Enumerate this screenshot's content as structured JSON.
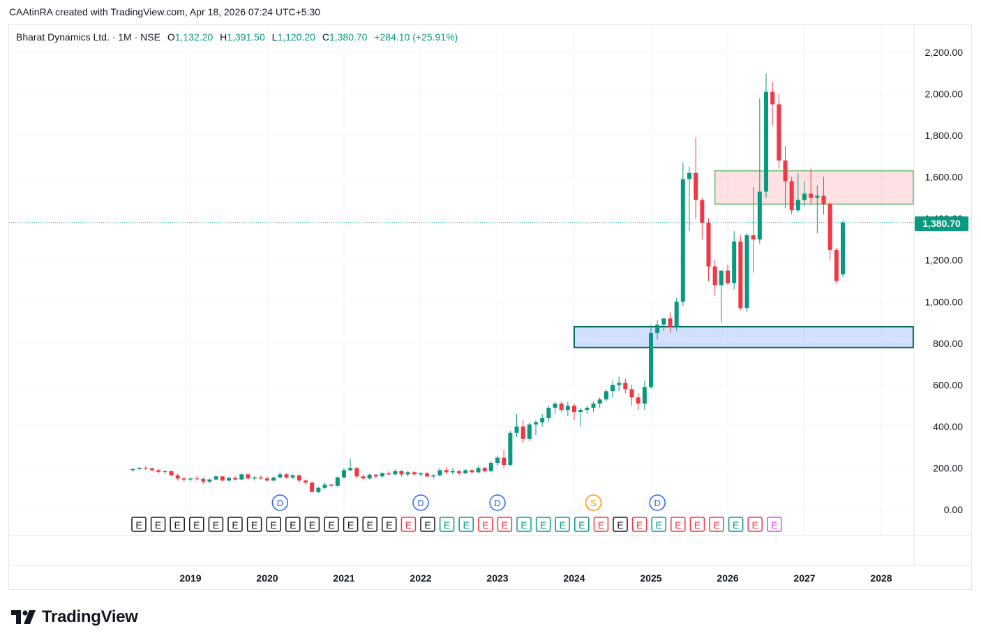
{
  "caption": "CAAtinRA created with TradingView.com, Apr 18, 2026 07:24 UTC+5:30",
  "legend": {
    "symbol": "Bharat Dynamics Ltd. · 1M · NSE",
    "o_label": "O",
    "o": "1,132.20",
    "h_label": "H",
    "h": "1,391.50",
    "l_label": "L",
    "l": "1,120.20",
    "c_label": "C",
    "c": "1,380.70",
    "change": "+284.10 (+25.91%)"
  },
  "last_price_label": "1,380.70",
  "brand": "TradingView",
  "colors": {
    "up": "#089981",
    "down": "#f23645",
    "dividend": "#2962ff",
    "split": "#ff9800",
    "earnings": "#131722"
  },
  "chart_data": {
    "type": "candlestick",
    "ylim": [
      -30,
      2250
    ],
    "y_ticks": [
      0,
      200,
      400,
      600,
      800,
      1000,
      1200,
      1400,
      1600,
      1800,
      2000,
      2200
    ],
    "y_tick_labels": [
      "0.00",
      "200.00",
      "400.00",
      "600.00",
      "800.00",
      "1,000.00",
      "1,200.00",
      "1,400.00",
      "1,600.00",
      "1,800.00",
      "2,000.00",
      "2,200.00"
    ],
    "x_tick_labels": [
      "2019",
      "2020",
      "2021",
      "2022",
      "2023",
      "2024",
      "2025",
      "2026",
      "2027",
      "2028"
    ],
    "x_ticks": [
      2019,
      2020,
      2021,
      2022,
      2023,
      2024,
      2025,
      2026,
      2027,
      2028
    ],
    "last_price": 1380.7,
    "start": "2018-03",
    "candles": [
      [
        190,
        200,
        180,
        195
      ],
      [
        195,
        205,
        188,
        200
      ],
      [
        200,
        210,
        190,
        198
      ],
      [
        198,
        202,
        185,
        190
      ],
      [
        190,
        195,
        175,
        182
      ],
      [
        182,
        190,
        170,
        185
      ],
      [
        185,
        188,
        160,
        165
      ],
      [
        165,
        172,
        140,
        150
      ],
      [
        150,
        158,
        135,
        145
      ],
      [
        145,
        155,
        138,
        150
      ],
      [
        150,
        160,
        140,
        148
      ],
      [
        148,
        155,
        125,
        135
      ],
      [
        135,
        150,
        128,
        145
      ],
      [
        145,
        165,
        140,
        160
      ],
      [
        160,
        162,
        135,
        140
      ],
      [
        140,
        158,
        135,
        152
      ],
      [
        152,
        160,
        140,
        145
      ],
      [
        145,
        175,
        142,
        170
      ],
      [
        170,
        172,
        145,
        150
      ],
      [
        150,
        160,
        140,
        155
      ],
      [
        155,
        165,
        145,
        150
      ],
      [
        150,
        160,
        135,
        140
      ],
      [
        140,
        160,
        135,
        155
      ],
      [
        155,
        180,
        150,
        170
      ],
      [
        170,
        175,
        150,
        155
      ],
      [
        155,
        170,
        148,
        165
      ],
      [
        165,
        168,
        130,
        140
      ],
      [
        140,
        145,
        120,
        130
      ],
      [
        130,
        135,
        90,
        85
      ],
      [
        85,
        110,
        80,
        105
      ],
      [
        105,
        130,
        100,
        120
      ],
      [
        120,
        125,
        110,
        115
      ],
      [
        115,
        160,
        110,
        155
      ],
      [
        155,
        200,
        150,
        190
      ],
      [
        190,
        245,
        185,
        200
      ],
      [
        200,
        205,
        150,
        160
      ],
      [
        160,
        170,
        140,
        150
      ],
      [
        150,
        175,
        145,
        168
      ],
      [
        168,
        172,
        150,
        160
      ],
      [
        160,
        180,
        155,
        175
      ],
      [
        175,
        185,
        165,
        170
      ],
      [
        170,
        195,
        165,
        185
      ],
      [
        185,
        190,
        160,
        170
      ],
      [
        170,
        185,
        160,
        180
      ],
      [
        180,
        185,
        165,
        170
      ],
      [
        170,
        180,
        160,
        175
      ],
      [
        175,
        180,
        155,
        160
      ],
      [
        160,
        170,
        150,
        165
      ],
      [
        165,
        200,
        160,
        190
      ],
      [
        190,
        205,
        170,
        180
      ],
      [
        180,
        200,
        170,
        185
      ],
      [
        185,
        190,
        165,
        175
      ],
      [
        175,
        195,
        170,
        190
      ],
      [
        190,
        195,
        170,
        180
      ],
      [
        180,
        210,
        175,
        200
      ],
      [
        200,
        205,
        180,
        185
      ],
      [
        185,
        235,
        180,
        225
      ],
      [
        225,
        260,
        210,
        250
      ],
      [
        250,
        290,
        200,
        215
      ],
      [
        215,
        380,
        210,
        370
      ],
      [
        370,
        460,
        350,
        400
      ],
      [
        400,
        430,
        320,
        340
      ],
      [
        340,
        420,
        330,
        410
      ],
      [
        410,
        430,
        360,
        420
      ],
      [
        420,
        460,
        400,
        440
      ],
      [
        440,
        500,
        420,
        490
      ],
      [
        490,
        520,
        460,
        510
      ],
      [
        510,
        520,
        470,
        480
      ],
      [
        480,
        520,
        450,
        500
      ],
      [
        500,
        510,
        430,
        470
      ],
      [
        470,
        490,
        400,
        480
      ],
      [
        480,
        500,
        460,
        490
      ],
      [
        490,
        520,
        470,
        510
      ],
      [
        510,
        540,
        490,
        530
      ],
      [
        530,
        580,
        520,
        570
      ],
      [
        570,
        620,
        540,
        600
      ],
      [
        600,
        640,
        570,
        610
      ],
      [
        610,
        630,
        560,
        580
      ],
      [
        580,
        600,
        500,
        540
      ],
      [
        540,
        560,
        480,
        510
      ],
      [
        510,
        620,
        480,
        590
      ],
      [
        590,
        890,
        580,
        850
      ],
      [
        850,
        910,
        820,
        890
      ],
      [
        890,
        920,
        860,
        920
      ],
      [
        920,
        950,
        850,
        880
      ],
      [
        880,
        1020,
        860,
        1000
      ],
      [
        1000,
        1670,
        980,
        1590
      ],
      [
        1590,
        1650,
        1340,
        1620
      ],
      [
        1620,
        1790,
        1400,
        1490
      ],
      [
        1490,
        1500,
        1300,
        1380
      ],
      [
        1380,
        1400,
        1100,
        1170
      ],
      [
        1170,
        1200,
        1030,
        1080
      ],
      [
        1080,
        1130,
        900,
        1150
      ],
      [
        1150,
        1180,
        1080,
        1090
      ],
      [
        1090,
        1340,
        1060,
        1290
      ],
      [
        1290,
        1320,
        960,
        970
      ],
      [
        970,
        1330,
        950,
        1320
      ],
      [
        1320,
        1550,
        1140,
        1300
      ],
      [
        1300,
        1980,
        1280,
        1530
      ],
      [
        1530,
        2100,
        1500,
        2010
      ],
      [
        2010,
        2060,
        1850,
        1950
      ],
      [
        1950,
        2000,
        1640,
        1680
      ],
      [
        1680,
        1750,
        1450,
        1580
      ],
      [
        1580,
        1600,
        1420,
        1440
      ],
      [
        1440,
        1620,
        1430,
        1490
      ],
      [
        1490,
        1580,
        1460,
        1520
      ],
      [
        1520,
        1640,
        1470,
        1500
      ],
      [
        1500,
        1560,
        1330,
        1510
      ],
      [
        1510,
        1600,
        1420,
        1470
      ],
      [
        1470,
        1480,
        1200,
        1250
      ],
      [
        1250,
        1260,
        1090,
        1100
      ],
      [
        1132.2,
        1391.5,
        1120.2,
        1380.7
      ]
    ],
    "zones": [
      {
        "kind": "supply",
        "from": "2025-10",
        "to": "2028-05",
        "y1": 1470,
        "y2": 1630
      },
      {
        "kind": "demand",
        "from": "2024-00",
        "to": "2028-05",
        "y1": 780,
        "y2": 880
      }
    ],
    "event_markers": [
      {
        "type": "D",
        "t": "2020-02",
        "color": "#2962ff"
      },
      {
        "type": "D",
        "t": "2022-00",
        "color": "#2962ff"
      },
      {
        "type": "D",
        "t": "2023-00",
        "color": "#2962ff"
      },
      {
        "type": "S",
        "t": "2024-03",
        "color": "#ff9800"
      },
      {
        "type": "D",
        "t": "2025-01",
        "color": "#2962ff"
      }
    ],
    "earnings": [
      {
        "label": "E",
        "color": "#131722"
      },
      {
        "label": "E",
        "color": "#131722"
      },
      {
        "label": "E",
        "color": "#131722"
      },
      {
        "label": "E",
        "color": "#131722"
      },
      {
        "label": "E",
        "color": "#131722"
      },
      {
        "label": "E",
        "color": "#131722"
      },
      {
        "label": "E",
        "color": "#131722"
      },
      {
        "label": "E",
        "color": "#131722"
      },
      {
        "label": "E",
        "color": "#131722"
      },
      {
        "label": "E",
        "color": "#131722"
      },
      {
        "label": "E",
        "color": "#131722"
      },
      {
        "label": "E",
        "color": "#131722"
      },
      {
        "label": "E",
        "color": "#131722"
      },
      {
        "label": "E",
        "color": "#131722"
      },
      {
        "label": "E",
        "color": "#f23645"
      },
      {
        "label": "E",
        "color": "#131722"
      },
      {
        "label": "E",
        "color": "#089981"
      },
      {
        "label": "E",
        "color": "#089981"
      },
      {
        "label": "E",
        "color": "#f23645"
      },
      {
        "label": "E",
        "color": "#f23645"
      },
      {
        "label": "E",
        "color": "#089981"
      },
      {
        "label": "E",
        "color": "#089981"
      },
      {
        "label": "E",
        "color": "#089981"
      },
      {
        "label": "E",
        "color": "#089981"
      },
      {
        "label": "E",
        "color": "#f23645"
      },
      {
        "label": "E",
        "color": "#131722"
      },
      {
        "label": "E",
        "color": "#f23645"
      },
      {
        "label": "E",
        "color": "#089981"
      },
      {
        "label": "E",
        "color": "#f23645"
      },
      {
        "label": "E",
        "color": "#f23645"
      },
      {
        "label": "E",
        "color": "#f23645"
      },
      {
        "label": "E",
        "color": "#089981"
      },
      {
        "label": "E",
        "color": "#f23645"
      },
      {
        "label": "E",
        "color": "#e040fb"
      }
    ]
  }
}
